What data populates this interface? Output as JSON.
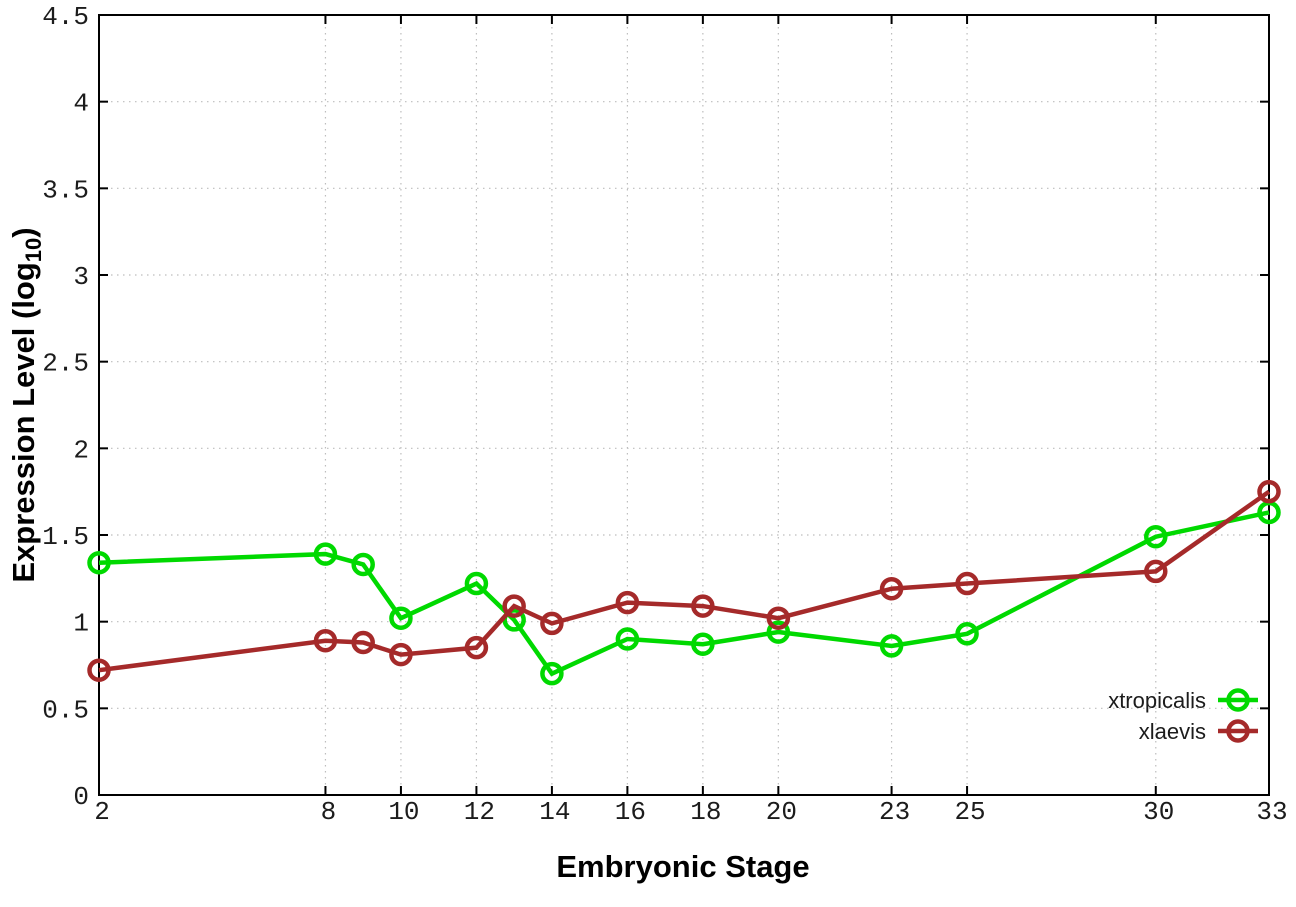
{
  "chart_data": {
    "type": "line",
    "title": "",
    "xlabel": "Embryonic Stage",
    "ylabel": {
      "main": "Expression Level (log",
      "sub": "10",
      "suffix": ")"
    },
    "xlim": [
      2,
      33
    ],
    "ylim": [
      0,
      4.5
    ],
    "grid": true,
    "legend_position": "bottom-right",
    "x": [
      2,
      8,
      9,
      10,
      12,
      13,
      14,
      16,
      18,
      20,
      23,
      25,
      30,
      33
    ],
    "xticks": [
      2,
      8,
      10,
      12,
      14,
      16,
      18,
      20,
      23,
      25,
      30,
      33
    ],
    "x_tick_labels": [
      "2",
      "8",
      "10",
      "12",
      "14",
      "16",
      "18",
      "20",
      "23",
      "25",
      "30",
      "33"
    ],
    "yticks": [
      0,
      0.5,
      1,
      1.5,
      2,
      2.5,
      3,
      3.5,
      4,
      4.5
    ],
    "y_tick_labels": [
      "0",
      "0.5",
      "1",
      "1.5",
      "2",
      "2.5",
      "3",
      "3.5",
      "4",
      "4.5"
    ],
    "series": [
      {
        "name": "xtropicalis",
        "color": "#00d900",
        "values": [
          1.34,
          1.39,
          1.33,
          1.02,
          1.22,
          1.01,
          0.7,
          0.9,
          0.87,
          0.94,
          0.86,
          0.93,
          1.49,
          1.63
        ]
      },
      {
        "name": "xlaevis",
        "color": "#a52a2a",
        "values": [
          0.72,
          0.89,
          0.88,
          0.81,
          0.85,
          1.09,
          0.99,
          1.11,
          1.09,
          1.02,
          1.19,
          1.22,
          1.29,
          1.75
        ]
      }
    ]
  },
  "style": {
    "background": "#ffffff",
    "grid_color": "#bdbdbd",
    "axis_color": "#000000",
    "text_color": "#1c1c1c"
  }
}
